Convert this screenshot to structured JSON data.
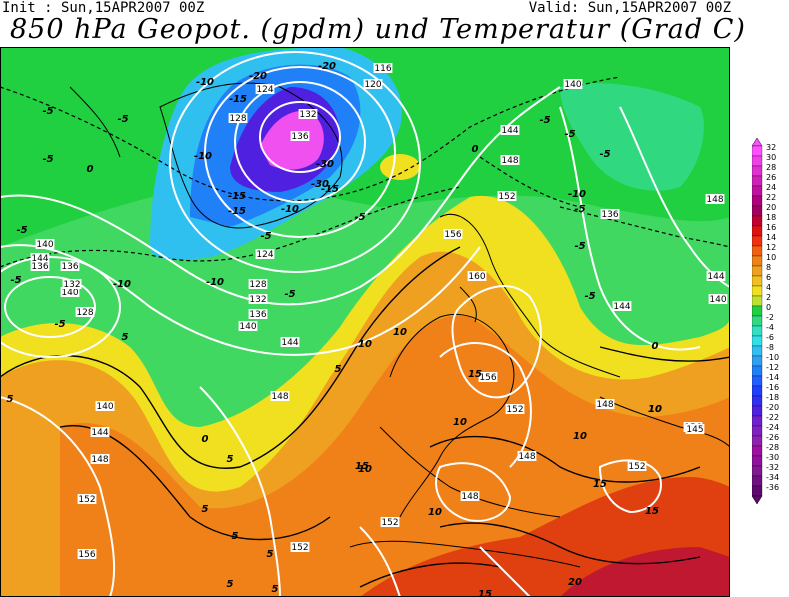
{
  "header": {
    "init": "Init : Sun,15APR2007 00Z",
    "valid": "Valid: Sun,15APR2007 00Z",
    "title": "850 hPa Geopot. (gpdm) und Temperatur (Grad C)"
  },
  "colors": {
    "violet": "#7a1fa8",
    "purple": "#c040e0",
    "magenta": "#f050f0",
    "blue": "#2040ff",
    "lightblue": "#30a0f0",
    "cyan": "#30e0e0",
    "green": "#20d040",
    "yellow": "#f0e020",
    "orange": "#f08010",
    "red": "#e02020"
  },
  "legend": {
    "values": [
      "32",
      "30",
      "28",
      "26",
      "24",
      "22",
      "20",
      "18",
      "16",
      "14",
      "12",
      "10",
      "8",
      "6",
      "4",
      "2",
      "0",
      "-2",
      "-4",
      "-6",
      "-8",
      "-10",
      "-12",
      "-14",
      "-16",
      "-18",
      "-20",
      "-22",
      "-24",
      "-26",
      "-28",
      "-30",
      "-32",
      "-34",
      "-36"
    ],
    "colors": [
      "#ff50ff",
      "#f040e8",
      "#e030d0",
      "#d020b8",
      "#c010a0",
      "#b00080",
      "#a00060",
      "#c00030",
      "#e01010",
      "#f03010",
      "#f06010",
      "#f08018",
      "#f0a020",
      "#f0c020",
      "#f0e020",
      "#c0e030",
      "#20d040",
      "#30d880",
      "#30e0c0",
      "#30e0e8",
      "#30c0f0",
      "#30a0f0",
      "#2080f8",
      "#2060ff",
      "#2040ff",
      "#3030f0",
      "#5020e0",
      "#7020d0",
      "#8020c0",
      "#9020b0",
      "#a010a0",
      "#9010a0",
      "#801890",
      "#701080",
      "#600870"
    ]
  },
  "geopotential_labels": [
    {
      "v": "116"
    },
    {
      "v": "120"
    },
    {
      "v": "124"
    },
    {
      "v": "128"
    },
    {
      "v": "132"
    },
    {
      "v": "136"
    },
    {
      "v": "140"
    },
    {
      "v": "144"
    },
    {
      "v": "148"
    },
    {
      "v": "152"
    },
    {
      "v": "156"
    },
    {
      "v": "160"
    },
    {
      "v": "124"
    },
    {
      "v": "128"
    },
    {
      "v": "132"
    },
    {
      "v": "136"
    },
    {
      "v": "140"
    },
    {
      "v": "144"
    },
    {
      "v": "140"
    },
    {
      "v": "144"
    },
    {
      "v": "148"
    },
    {
      "v": "152"
    },
    {
      "v": "156"
    },
    {
      "v": "136"
    },
    {
      "v": "128"
    },
    {
      "v": "136"
    },
    {
      "v": "140"
    },
    {
      "v": "132"
    },
    {
      "v": "140"
    },
    {
      "v": "144"
    },
    {
      "v": "148"
    },
    {
      "v": "152"
    },
    {
      "v": "156"
    },
    {
      "v": "148"
    },
    {
      "v": "152"
    },
    {
      "v": "156"
    },
    {
      "v": "152"
    },
    {
      "v": "148"
    },
    {
      "v": "145"
    },
    {
      "v": "140"
    },
    {
      "v": "144"
    },
    {
      "v": "148"
    },
    {
      "v": "152"
    },
    {
      "v": "148"
    },
    {
      "v": "144"
    },
    {
      "v": "140"
    },
    {
      "v": "136"
    },
    {
      "v": "132"
    }
  ],
  "temperature_labels": [
    {
      "v": "-20"
    },
    {
      "v": "-20"
    },
    {
      "v": "-15"
    },
    {
      "v": "-10"
    },
    {
      "v": "-10"
    },
    {
      "v": "-5"
    },
    {
      "v": "-5"
    },
    {
      "v": "-5"
    },
    {
      "v": "-10"
    },
    {
      "v": "-15"
    },
    {
      "v": "-10"
    },
    {
      "v": "-5"
    },
    {
      "v": "-10"
    },
    {
      "v": "-5"
    },
    {
      "v": "-5"
    },
    {
      "v": "-5"
    },
    {
      "v": "-5"
    },
    {
      "v": "-5"
    },
    {
      "v": "-5"
    },
    {
      "v": "-5"
    },
    {
      "v": "-10"
    },
    {
      "v": "-5"
    },
    {
      "v": "-5"
    },
    {
      "v": "-5"
    },
    {
      "v": "-30"
    },
    {
      "v": "-30"
    },
    {
      "v": "-15"
    },
    {
      "v": "-15"
    },
    {
      "v": "-5"
    },
    {
      "v": "0"
    },
    {
      "v": "0"
    },
    {
      "v": "0"
    },
    {
      "v": "0"
    },
    {
      "v": "5"
    },
    {
      "v": "5"
    },
    {
      "v": "5"
    },
    {
      "v": "5"
    },
    {
      "v": "5"
    },
    {
      "v": "10"
    },
    {
      "v": "10"
    },
    {
      "v": "10"
    },
    {
      "v": "10"
    },
    {
      "v": "10"
    },
    {
      "v": "10"
    },
    {
      "v": "15"
    },
    {
      "v": "15"
    },
    {
      "v": "15"
    },
    {
      "v": "15"
    },
    {
      "v": "20"
    },
    {
      "v": "15"
    },
    {
      "v": "10"
    },
    {
      "v": "5"
    },
    {
      "v": "5"
    },
    {
      "v": "10"
    },
    {
      "v": "5"
    },
    {
      "v": "5"
    }
  ]
}
